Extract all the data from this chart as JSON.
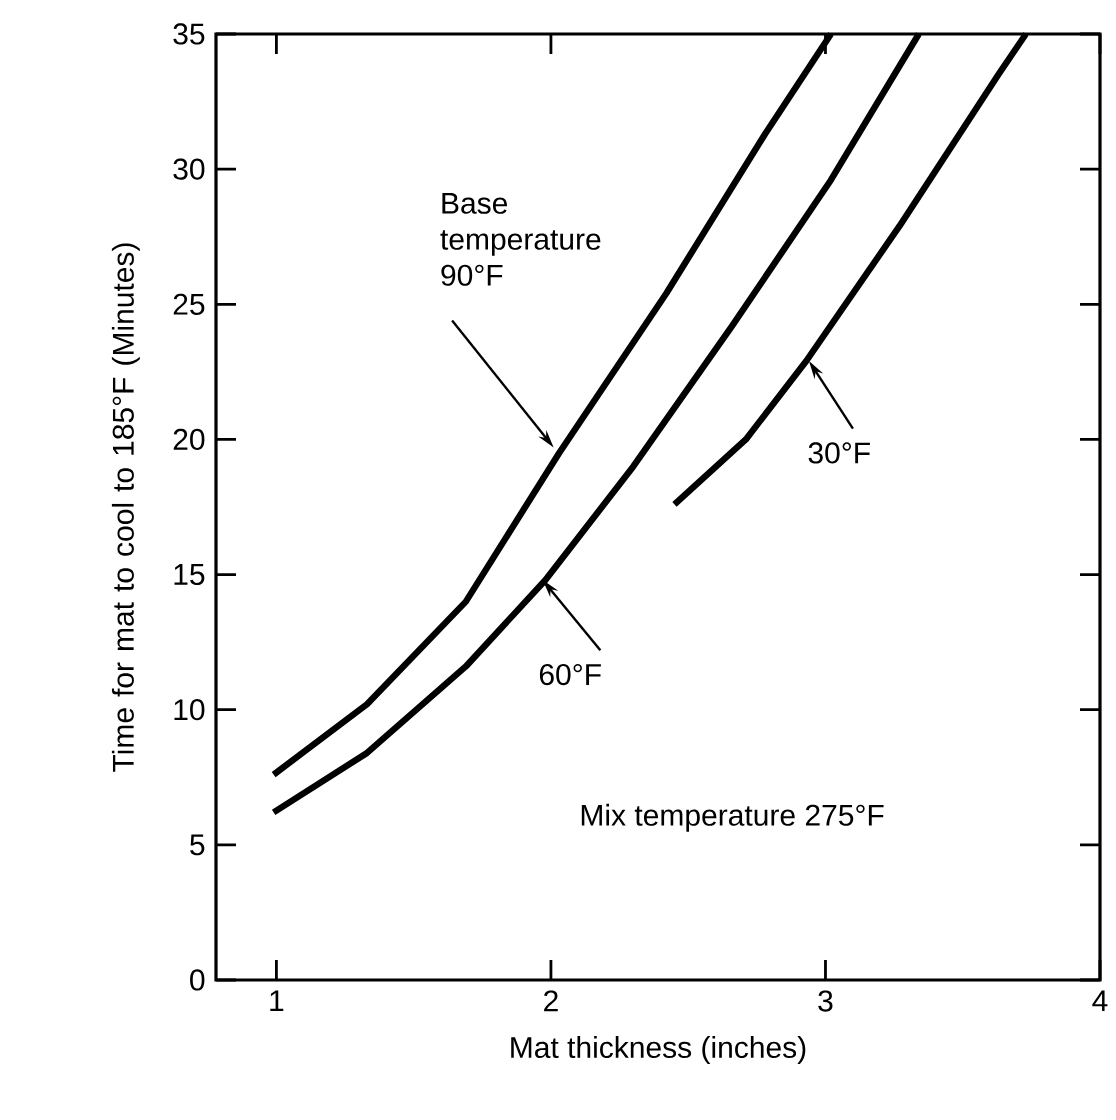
{
  "chart_data": {
    "type": "line",
    "xlabel": "Mat thickness (inches)",
    "ylabel": "Time for mat to cool to 185°F (Minutes)",
    "xlim": [
      0.78,
      4
    ],
    "ylim": [
      0,
      35
    ],
    "xticks": [
      1,
      2,
      3,
      4
    ],
    "yticks": [
      0,
      5,
      10,
      15,
      20,
      25,
      30,
      35
    ],
    "grid": false,
    "marker": "none",
    "line_style": "solid",
    "series": [
      {
        "color": "#000000",
        "x": [
          0.99,
          1.33,
          1.69,
          2.03,
          2.42,
          2.78,
          3.02
        ],
        "values": [
          7.6,
          10.2,
          14.0,
          19.5,
          25.4,
          31.3,
          35
        ]
      },
      {
        "color": "#000000",
        "x": [
          0.99,
          1.33,
          1.69,
          1.98,
          2.3,
          2.66,
          3.02,
          3.34
        ],
        "values": [
          6.2,
          8.4,
          11.6,
          14.8,
          19.0,
          24.2,
          29.6,
          35
        ]
      },
      {
        "color": "#000000",
        "x": [
          2.45,
          2.71,
          2.93,
          3.27,
          3.63,
          3.73
        ],
        "values": [
          17.6,
          20.0,
          22.9,
          27.9,
          33.5,
          35
        ]
      }
    ],
    "annotations": [
      {
        "text": "Base temperature 90°F",
        "x": 2.01,
        "y": 19.7
      },
      {
        "text": "60°F",
        "x": 1.97,
        "y": 14.8
      },
      {
        "text": "30°F",
        "x": 2.94,
        "y": 22.9
      },
      "Mix temperature 275°F"
    ]
  }
}
